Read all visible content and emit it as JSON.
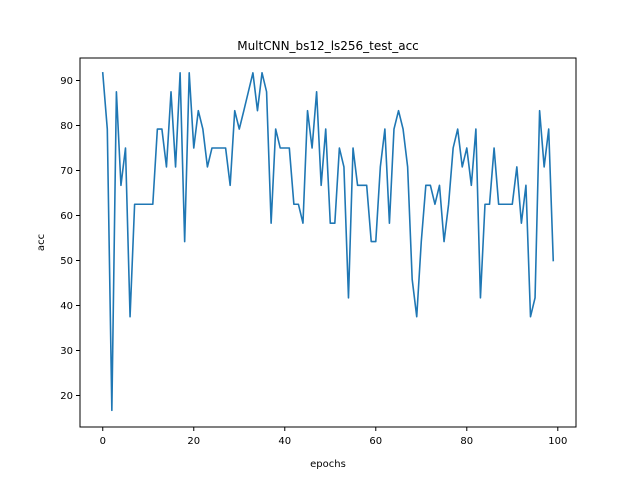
{
  "chart_data": {
    "type": "line",
    "title": "MultCNN_bs12_ls256_test_acc",
    "xlabel": "epochs",
    "ylabel": "acc",
    "xlim": [
      -5,
      104
    ],
    "ylim": [
      13,
      95
    ],
    "xticks": [
      0,
      20,
      40,
      60,
      80,
      100
    ],
    "yticks": [
      20,
      30,
      40,
      50,
      60,
      70,
      80,
      90
    ],
    "grid": false,
    "legend": "none",
    "series": [
      {
        "color": "#1f77b4",
        "x": [
          0,
          1,
          2,
          3,
          4,
          5,
          6,
          7,
          8,
          9,
          10,
          11,
          12,
          13,
          14,
          15,
          16,
          17,
          18,
          19,
          20,
          21,
          22,
          23,
          24,
          25,
          26,
          27,
          28,
          29,
          30,
          31,
          32,
          33,
          34,
          35,
          36,
          37,
          38,
          39,
          40,
          41,
          42,
          43,
          44,
          45,
          46,
          47,
          48,
          49,
          50,
          51,
          52,
          53,
          54,
          55,
          56,
          57,
          58,
          59,
          60,
          61,
          62,
          63,
          64,
          65,
          66,
          67,
          68,
          69,
          70,
          71,
          72,
          73,
          74,
          75,
          76,
          77,
          78,
          79,
          80,
          81,
          82,
          83,
          84,
          85,
          86,
          87,
          88,
          89,
          90,
          91,
          92,
          93,
          94,
          95,
          96,
          97,
          98,
          99
        ],
        "values": [
          91.7,
          79.2,
          16.7,
          87.5,
          66.7,
          75.0,
          37.5,
          62.5,
          62.5,
          62.5,
          62.5,
          62.5,
          79.2,
          79.2,
          70.8,
          87.5,
          70.8,
          91.7,
          54.2,
          91.7,
          75.0,
          83.3,
          79.2,
          70.8,
          75.0,
          75.0,
          75.0,
          75.0,
          66.7,
          83.3,
          79.2,
          83.3,
          87.5,
          91.7,
          83.3,
          91.7,
          87.5,
          58.3,
          79.2,
          75.0,
          75.0,
          75.0,
          62.5,
          62.5,
          58.3,
          83.3,
          75.0,
          87.5,
          66.7,
          79.2,
          58.3,
          58.3,
          75.0,
          70.8,
          41.7,
          75.0,
          66.7,
          66.7,
          66.7,
          54.2,
          54.2,
          70.8,
          79.2,
          58.3,
          79.2,
          83.3,
          79.2,
          70.8,
          45.8,
          37.5,
          54.2,
          66.7,
          66.7,
          62.5,
          66.7,
          54.2,
          62.5,
          75.0,
          79.2,
          70.8,
          75.0,
          66.7,
          79.2,
          41.7,
          62.5,
          62.5,
          75.0,
          62.5,
          62.5,
          62.5,
          62.5,
          70.8,
          58.3,
          66.7,
          37.5,
          41.7,
          83.3,
          70.8,
          79.2,
          50.0
        ]
      }
    ]
  }
}
